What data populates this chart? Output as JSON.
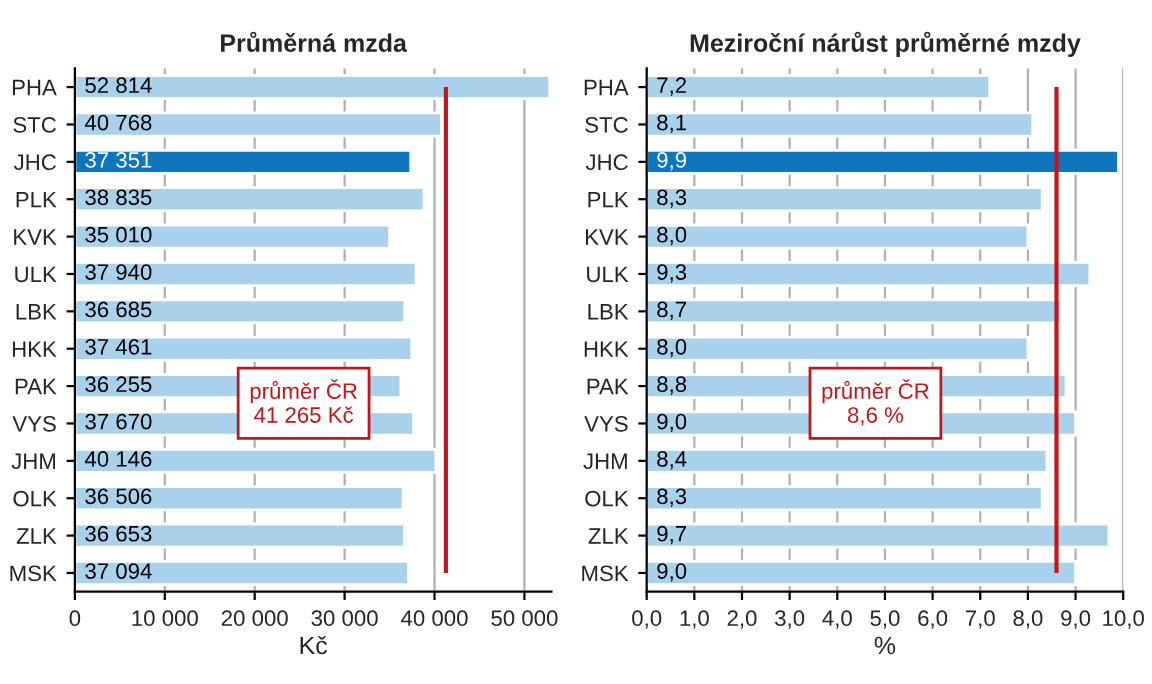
{
  "chart_data": [
    {
      "type": "bar",
      "orientation": "horizontal",
      "title": "Průměrná mzda",
      "xlabel": "Kč",
      "categories": [
        "PHA",
        "STC",
        "JHC",
        "PLK",
        "KVK",
        "ULK",
        "LBK",
        "HKK",
        "PAK",
        "VYS",
        "JHM",
        "OLK",
        "ZLK",
        "MSK"
      ],
      "values": [
        52814,
        40768,
        37351,
        38835,
        35010,
        37940,
        36685,
        37461,
        36255,
        37670,
        40146,
        36506,
        36653,
        37094
      ],
      "value_labels": [
        "52 814",
        "40 768",
        "37 351",
        "38 835",
        "35 010",
        "37 940",
        "36 685",
        "37 461",
        "36 255",
        "37 670",
        "40 146",
        "36 506",
        "36 653",
        "37 094"
      ],
      "colors": [
        "#a9d1ec",
        "#a9d1ec",
        "#0f75bd",
        "#a9d1ec",
        "#a9d1ec",
        "#a9d1ec",
        "#a9d1ec",
        "#a9d1ec",
        "#a9d1ec",
        "#a9d1ec",
        "#a9d1ec",
        "#a9d1ec",
        "#a9d1ec",
        "#a9d1ec"
      ],
      "xlim": [
        0,
        53000
      ],
      "xticks": [
        0,
        {
          "value": 10000,
          "label": "10 000"
        },
        {
          "value": 20000,
          "label": "20 000"
        },
        {
          "value": 30000,
          "label": "30 000"
        },
        {
          "value": 40000,
          "label": "40 000"
        },
        {
          "value": 50000,
          "label": "50 000"
        }
      ],
      "grid": "x",
      "ref_lines": [
        {
          "axis": "x",
          "value": 41265,
          "label": "průměr ČR\n41 265 Kč",
          "color": "#c0161c"
        }
      ]
    },
    {
      "type": "bar",
      "orientation": "horizontal",
      "title": "Meziroční nárůst průměrné mzdy",
      "xlabel": "%",
      "categories": [
        "PHA",
        "STC",
        "JHC",
        "PLK",
        "KVK",
        "ULK",
        "LBK",
        "HKK",
        "PAK",
        "VYS",
        "JHM",
        "OLK",
        "ZLK",
        "MSK"
      ],
      "values": [
        7.2,
        8.1,
        9.9,
        8.3,
        8.0,
        9.3,
        8.7,
        8.0,
        8.8,
        9.0,
        8.4,
        8.3,
        9.7,
        9.0
      ],
      "value_labels": [
        "7,2",
        "8,1",
        "9,9",
        "8,3",
        "8,0",
        "9,3",
        "8,7",
        "8,0",
        "8,8",
        "9,0",
        "8,4",
        "8,3",
        "9,7",
        "9,0"
      ],
      "colors": [
        "#a9d1ec",
        "#a9d1ec",
        "#0f75bd",
        "#a9d1ec",
        "#a9d1ec",
        "#a9d1ec",
        "#a9d1ec",
        "#a9d1ec",
        "#a9d1ec",
        "#a9d1ec",
        "#a9d1ec",
        "#a9d1ec",
        "#a9d1ec",
        "#a9d1ec"
      ],
      "xlim": [
        0,
        10
      ],
      "xticks": [
        {
          "value": 0,
          "label": "0,0"
        },
        {
          "value": 1,
          "label": "1,0"
        },
        {
          "value": 2,
          "label": "2,0"
        },
        {
          "value": 3,
          "label": "3,0"
        },
        {
          "value": 4,
          "label": "4,0"
        },
        {
          "value": 5,
          "label": "5,0"
        },
        {
          "value": 6,
          "label": "6,0"
        },
        {
          "value": 7,
          "label": "7,0"
        },
        {
          "value": 8,
          "label": "8,0"
        },
        {
          "value": 9,
          "label": "9,0"
        },
        {
          "value": 10,
          "label": "10,0"
        }
      ],
      "grid": "x",
      "ref_lines": [
        {
          "axis": "x",
          "value": 8.6,
          "label": "průměr ČR\n8,6 %",
          "color": "#c0161c"
        }
      ]
    }
  ]
}
